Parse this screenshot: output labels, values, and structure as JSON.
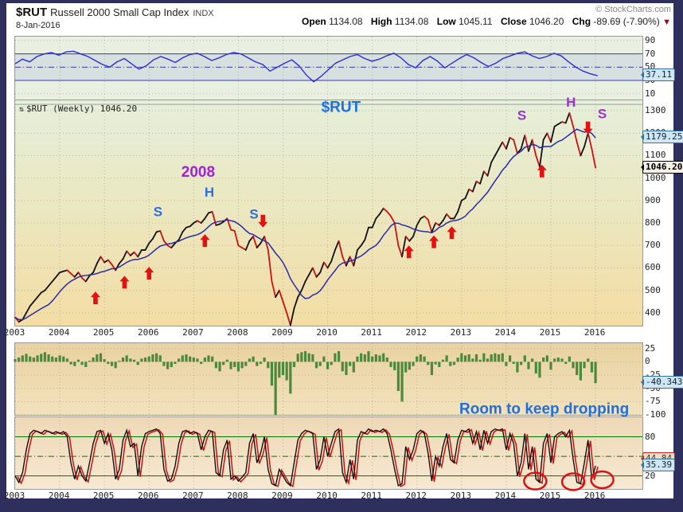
{
  "header": {
    "symbol": "$RUT",
    "name": "Russell 2000 Small Cap Index",
    "exchange": "INDX",
    "date": "8-Jan-2016",
    "copyright": "© StockCharts.com",
    "quote": {
      "open_label": "Open",
      "open": "1134.08",
      "high_label": "High",
      "high": "1134.08",
      "low_label": "Low",
      "low": "1045.11",
      "close_label": "Close",
      "close": "1046.20",
      "chg_label": "Chg",
      "chg": "-89.69 (-7.90%)",
      "change_icon": "▼"
    }
  },
  "colors": {
    "frame_navy": "#2f2f5e",
    "rsi_line": "#2d2dd0",
    "price_up": "#111111",
    "price_down": "#cc1111",
    "ma_line": "#2a2aa8",
    "histogram_green": "#4b8a3d",
    "stoch_line": "#111111",
    "stoch_signal": "#cc1111",
    "indicator_green": "#007700",
    "annotation_blue": "#1f6fe0",
    "annotation_purple": "#9a35cc",
    "arrow_red": "#e31212",
    "circle_red": "#dd1111"
  },
  "collapse_icon": "⇅",
  "x_axis": {
    "domain": [
      2003,
      2017.05
    ],
    "ticks": [
      2003,
      2004,
      2005,
      2006,
      2007,
      2008,
      2009,
      2010,
      2011,
      2012,
      2013,
      2014,
      2015,
      2016
    ]
  },
  "chart_data": [
    {
      "type": "line",
      "name": "rsi-indicator",
      "x_start": 2003.0,
      "x_step": 0.1631,
      "ylim": [
        0,
        96
      ],
      "yticks": [
        90,
        70,
        50,
        30,
        10
      ],
      "band": [
        30,
        70
      ],
      "hlines": [
        {
          "y": 70,
          "style": "solid",
          "color": "#3a3ac8"
        },
        {
          "y": 50,
          "style": "dashdot",
          "color": "#3a3ac8"
        },
        {
          "y": 30,
          "style": "solid",
          "color": "#3a3ac8"
        }
      ],
      "line_color": "#2d2dd0",
      "values": [
        55,
        62,
        58,
        66,
        70,
        72,
        68,
        73,
        74,
        70,
        66,
        60,
        54,
        50,
        58,
        63,
        55,
        47,
        52,
        61,
        66,
        62,
        57,
        64,
        69,
        71,
        66,
        60,
        64,
        69,
        72,
        70,
        64,
        58,
        54,
        44,
        50,
        56,
        61,
        52,
        38,
        28,
        36,
        46,
        56,
        61,
        66,
        69,
        63,
        59,
        62,
        67,
        71,
        64,
        54,
        49,
        60,
        66,
        59,
        49,
        56,
        63,
        69,
        64,
        57,
        51,
        56,
        63,
        67,
        71,
        73,
        67,
        63,
        66,
        71,
        67,
        58,
        50,
        44,
        40,
        37.11
      ],
      "callouts": [
        {
          "text": "37.11",
          "value": 37.11,
          "style": "blue"
        }
      ]
    },
    {
      "type": "line",
      "name": "price",
      "label": "$RUT (Weekly) 1046.20",
      "x_start": 2003.0,
      "x_step": 0.08333,
      "ylim": [
        343,
        1346
      ],
      "yticks": [
        1300,
        1200,
        1100,
        1000,
        900,
        800,
        700,
        600,
        500,
        400
      ],
      "updown_colors": true,
      "ma_window": 10,
      "hlines": [
        {
          "y": 1328,
          "style": "solid",
          "color": "#9aa3ab"
        }
      ],
      "values": [
        380,
        360,
        370,
        400,
        430,
        450,
        470,
        490,
        500,
        520,
        540,
        560,
        580,
        585,
        590,
        575,
        560,
        580,
        555,
        540,
        565,
        580,
        620,
        650,
        625,
        635,
        615,
        590,
        620,
        640,
        675,
        655,
        670,
        650,
        680,
        680,
        710,
        730,
        760,
        765,
        720,
        700,
        690,
        710,
        725,
        760,
        780,
        785,
        800,
        810,
        800,
        820,
        845,
        850,
        790,
        795,
        805,
        820,
        770,
        765,
        700,
        690,
        680,
        720,
        740,
        690,
        710,
        740,
        680,
        540,
        470,
        500,
        450,
        400,
        345,
        420,
        470,
        500,
        540,
        570,
        600,
        560,
        580,
        625,
        600,
        630,
        680,
        720,
        650,
        610,
        650,
        610,
        680,
        700,
        725,
        780,
        780,
        820,
        840,
        865,
        850,
        830,
        800,
        700,
        650,
        740,
        720,
        740,
        790,
        820,
        830,
        815,
        760,
        800,
        790,
        810,
        840,
        820,
        820,
        850,
        900,
        910,
        950,
        940,
        985,
        975,
        1030,
        1010,
        1070,
        1100,
        1130,
        1160,
        1130,
        1180,
        1170,
        1110,
        1130,
        1190,
        1120,
        1170,
        1100,
        1050,
        1170,
        1200,
        1160,
        1230,
        1240,
        1250,
        1245,
        1290,
        1230,
        1160,
        1100,
        1140,
        1200,
        1130,
        1046.2
      ],
      "annotations": [
        {
          "text": "S",
          "x": 2006.2,
          "y": 852,
          "color": "#2e6fe0",
          "size": 17
        },
        {
          "text": "H",
          "x": 2007.35,
          "y": 938,
          "color": "#2e6fe0",
          "size": 17
        },
        {
          "text": "S",
          "x": 2008.35,
          "y": 840,
          "color": "#2e6fe0",
          "size": 17
        },
        {
          "text": "2008",
          "x": 2007.1,
          "y": 1030,
          "color": "#a21fd6",
          "size": 19
        },
        {
          "text": "$RUT",
          "x": 2010.3,
          "y": 1318,
          "color": "#1f6fe0",
          "size": 19
        },
        {
          "text": "S",
          "x": 2014.35,
          "y": 1280,
          "color": "#9a35cc",
          "size": 17
        },
        {
          "text": "H",
          "x": 2015.45,
          "y": 1338,
          "color": "#9a35cc",
          "size": 17
        },
        {
          "text": "S",
          "x": 2016.15,
          "y": 1288,
          "color": "#9a35cc",
          "size": 17
        }
      ],
      "arrows": [
        {
          "x": 2004.8,
          "y": 495,
          "dir": "up"
        },
        {
          "x": 2005.45,
          "y": 565,
          "dir": "up"
        },
        {
          "x": 2006.0,
          "y": 605,
          "dir": "up"
        },
        {
          "x": 2007.25,
          "y": 750,
          "dir": "up"
        },
        {
          "x": 2008.55,
          "y": 780,
          "dir": "down"
        },
        {
          "x": 2011.82,
          "y": 700,
          "dir": "up"
        },
        {
          "x": 2012.38,
          "y": 745,
          "dir": "up"
        },
        {
          "x": 2012.78,
          "y": 785,
          "dir": "up"
        },
        {
          "x": 2014.8,
          "y": 1060,
          "dir": "up"
        },
        {
          "x": 2015.83,
          "y": 1195,
          "dir": "down"
        }
      ],
      "callouts": [
        {
          "text": "1179.25",
          "value": 1179.25,
          "style": "blue"
        },
        {
          "text": "1046.20",
          "value": 1046.2,
          "style": "black"
        }
      ]
    },
    {
      "type": "bar",
      "name": "momentum-histogram",
      "x_start": 2003.0,
      "x_step": 0.08333,
      "ylim": [
        -100,
        35
      ],
      "yticks": [
        25,
        0,
        -25,
        -50,
        -75,
        -100
      ],
      "bar_color": "#4b8a3d",
      "values": [
        5,
        8,
        12,
        15,
        10,
        8,
        12,
        15,
        18,
        14,
        10,
        8,
        12,
        10,
        6,
        -5,
        -8,
        4,
        -6,
        -10,
        2,
        8,
        14,
        16,
        5,
        -4,
        -8,
        -12,
        2,
        8,
        12,
        6,
        4,
        -6,
        6,
        8,
        10,
        14,
        16,
        12,
        -8,
        -14,
        -10,
        -4,
        6,
        12,
        14,
        10,
        8,
        6,
        -4,
        8,
        12,
        10,
        -12,
        -18,
        -6,
        4,
        -14,
        -10,
        -18,
        -12,
        -8,
        6,
        10,
        -8,
        -4,
        8,
        -12,
        -45,
        -100,
        -30,
        -25,
        -35,
        -60,
        -10,
        15,
        18,
        20,
        16,
        14,
        -12,
        -8,
        10,
        -14,
        -6,
        16,
        20,
        -18,
        -25,
        -8,
        -20,
        10,
        16,
        14,
        20,
        10,
        14,
        12,
        16,
        8,
        -10,
        -16,
        -55,
        -75,
        -20,
        -15,
        -8,
        10,
        14,
        10,
        -6,
        -25,
        -5,
        -10,
        4,
        12,
        -8,
        -6,
        8,
        16,
        12,
        14,
        6,
        14,
        4,
        16,
        6,
        14,
        16,
        14,
        16,
        -8,
        12,
        -4,
        -20,
        -6,
        12,
        -14,
        6,
        -22,
        -30,
        8,
        12,
        -15,
        6,
        8,
        6,
        -4,
        10,
        -12,
        -25,
        -35,
        -12,
        6,
        -20,
        -40.343
      ],
      "annotations": [
        {
          "text": "Room to keep dropping",
          "x": 2014.85,
          "y": -88,
          "color": "#1f6fe0",
          "size": 19
        }
      ],
      "callouts": [
        {
          "text": "-40.343",
          "value": -40.343,
          "style": "blue"
        }
      ]
    },
    {
      "type": "line",
      "name": "stochastic",
      "x_start": 2003.0,
      "x_step": 0.08333,
      "ylim": [
        0,
        110
      ],
      "yticks": [
        80,
        50,
        20
      ],
      "hlines": [
        {
          "y": 80,
          "style": "solid",
          "color": "#007700"
        },
        {
          "y": 50,
          "style": "dashdot",
          "color": "#007700"
        },
        {
          "y": 20,
          "style": "solid",
          "color": "#007700"
        }
      ],
      "line_color": "#111111",
      "signal_color": "#cc1111",
      "values": [
        20,
        10,
        25,
        60,
        85,
        90,
        88,
        85,
        90,
        88,
        85,
        88,
        85,
        88,
        80,
        40,
        15,
        35,
        20,
        12,
        40,
        70,
        88,
        90,
        70,
        85,
        60,
        15,
        30,
        75,
        90,
        65,
        70,
        20,
        65,
        85,
        88,
        90,
        92,
        85,
        30,
        12,
        15,
        35,
        70,
        88,
        90,
        85,
        88,
        85,
        60,
        80,
        90,
        88,
        25,
        20,
        60,
        75,
        15,
        20,
        12,
        18,
        25,
        70,
        85,
        40,
        55,
        80,
        30,
        8,
        5,
        30,
        20,
        10,
        5,
        40,
        75,
        85,
        90,
        88,
        85,
        30,
        45,
        80,
        50,
        70,
        88,
        92,
        25,
        10,
        45,
        15,
        75,
        88,
        85,
        92,
        88,
        90,
        88,
        92,
        85,
        60,
        30,
        5,
        8,
        65,
        45,
        60,
        85,
        90,
        85,
        55,
        12,
        50,
        35,
        65,
        85,
        45,
        40,
        75,
        90,
        88,
        92,
        70,
        88,
        60,
        90,
        70,
        88,
        92,
        90,
        92,
        60,
        85,
        70,
        20,
        40,
        85,
        30,
        65,
        15,
        10,
        70,
        85,
        40,
        80,
        85,
        88,
        80,
        90,
        45,
        10,
        8,
        40,
        75,
        15,
        35.39
      ],
      "circles": [
        {
          "x": 2014.65,
          "y": 12
        },
        {
          "x": 2015.5,
          "y": 11
        },
        {
          "x": 2016.15,
          "y": 14
        }
      ],
      "callouts": [
        {
          "text": "44.84",
          "value": 44.8,
          "style": "red"
        },
        {
          "text": "35.39",
          "value": 35.4,
          "style": "blue"
        }
      ]
    }
  ]
}
